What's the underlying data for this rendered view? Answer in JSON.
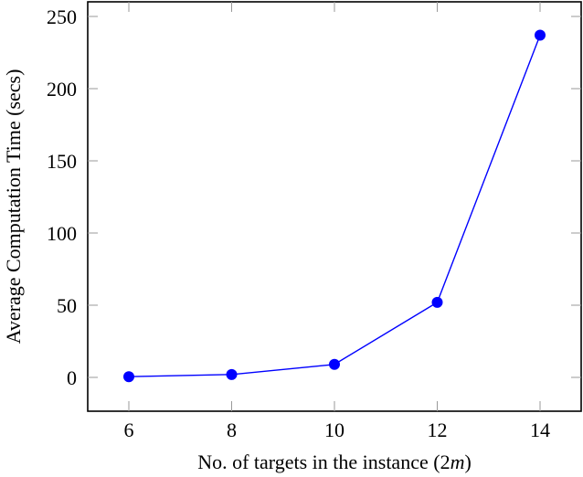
{
  "chart_data": {
    "type": "line",
    "title": "",
    "xlabel": "No. of targets in the instance (2m)",
    "xlabel_parts": {
      "text": "No. of targets in the instance (",
      "math_num": "2",
      "math_var": "m",
      "close": ")"
    },
    "ylabel": "Average Computation Time (secs)",
    "x": [
      6,
      8,
      10,
      12,
      14
    ],
    "x_ticks": [
      "6",
      "8",
      "10",
      "12",
      "14"
    ],
    "y_ticks": [
      "0",
      "50",
      "100",
      "150",
      "200",
      "250"
    ],
    "series": [
      {
        "name": "Average Computation Time",
        "color": "#0000ff",
        "marker": "circle",
        "values": [
          0.5,
          2,
          9,
          52,
          237
        ]
      }
    ],
    "xlim": [
      5.4,
      14.7
    ],
    "ylim": [
      -23,
      260
    ],
    "grid": false,
    "legend": null
  }
}
